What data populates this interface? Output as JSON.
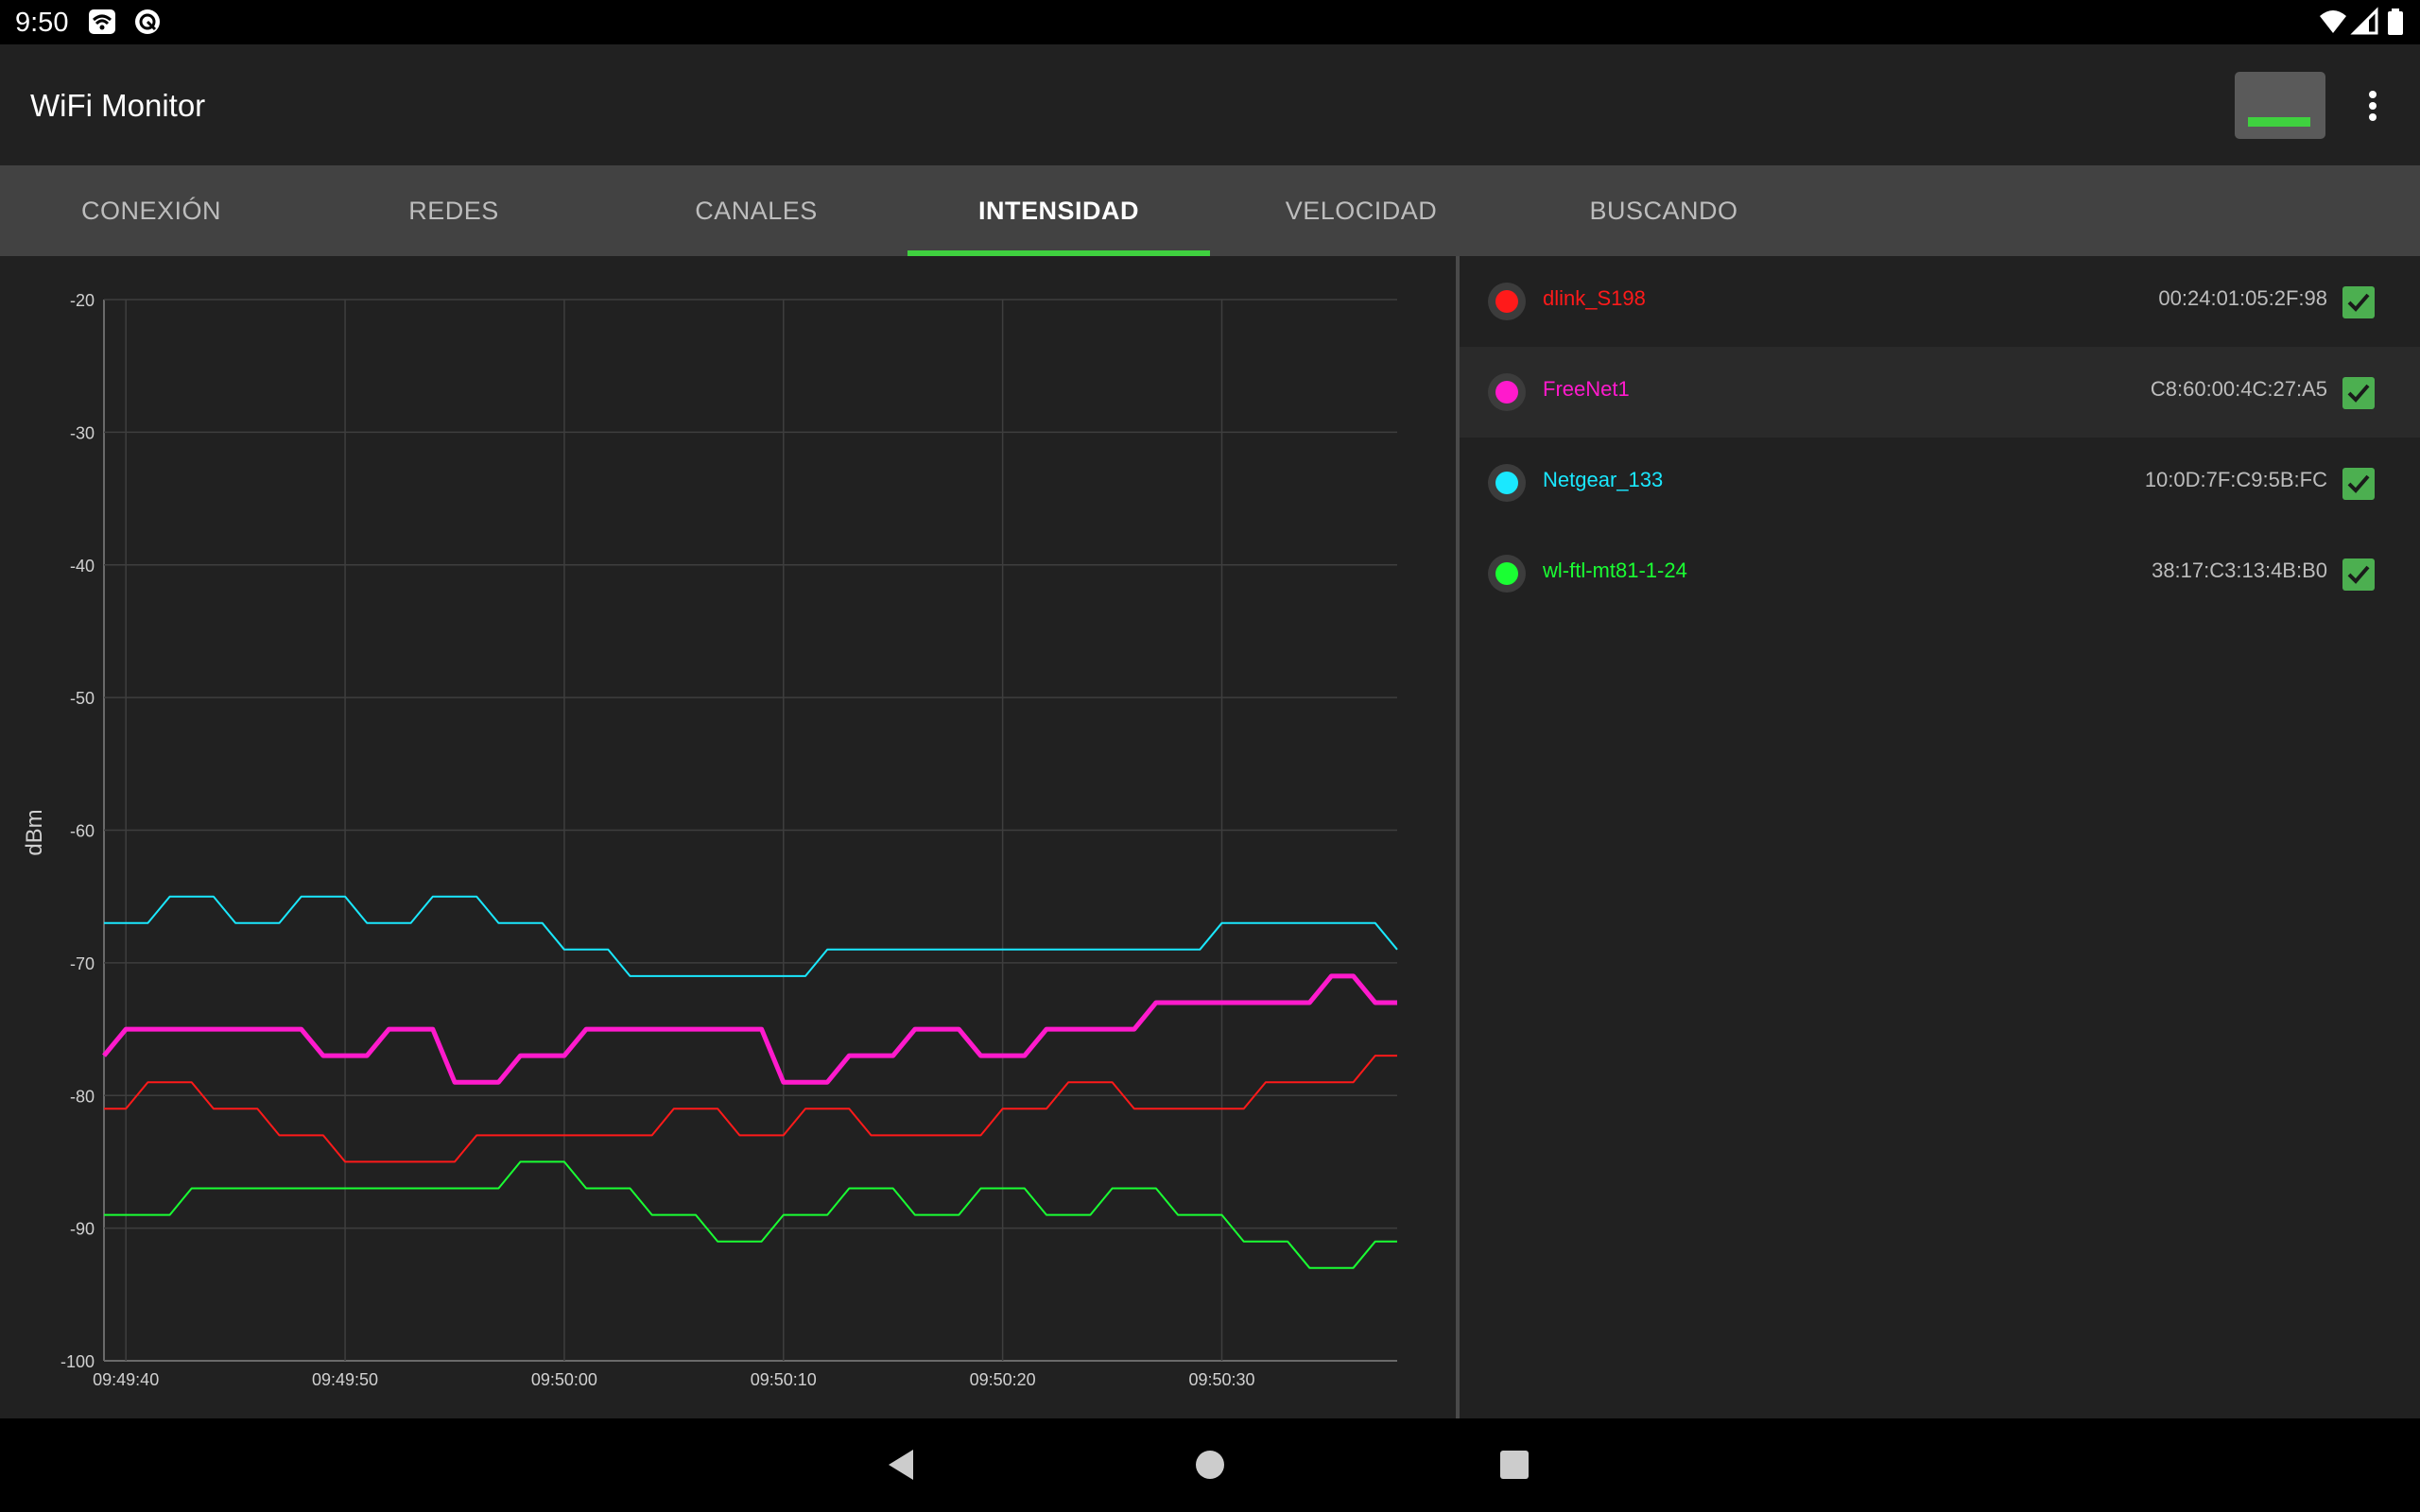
{
  "status_bar": {
    "time": "9:50"
  },
  "app": {
    "title": "WiFi Monitor"
  },
  "tabs": [
    {
      "label": "CONEXIÓN",
      "active": false
    },
    {
      "label": "REDES",
      "active": false
    },
    {
      "label": "CANALES",
      "active": false
    },
    {
      "label": "INTENSIDAD",
      "active": true
    },
    {
      "label": "VELOCIDAD",
      "active": false
    },
    {
      "label": "BUSCANDO",
      "active": false
    }
  ],
  "networks": [
    {
      "ssid": "dlink_S198",
      "bssid": "00:24:01:05:2F:98",
      "color": "#ff1a1a",
      "checked": true
    },
    {
      "ssid": "FreeNet1",
      "bssid": "C8:60:00:4C:27:A5",
      "color": "#ff1acc",
      "checked": true
    },
    {
      "ssid": "Netgear_133",
      "bssid": "10:0D:7F:C9:5B:FC",
      "color": "#1ae8ff",
      "checked": true
    },
    {
      "ssid": "wl-ftl-mt81-1-24",
      "bssid": "38:17:C3:13:4B:B0",
      "color": "#1aff33",
      "checked": true
    }
  ],
  "chart_data": {
    "type": "line",
    "ylabel": "dBm",
    "xlabel": "",
    "ylim": [
      -100,
      -20
    ],
    "yticks": [
      "-20",
      "-30",
      "-40",
      "-50",
      "-60",
      "-70",
      "-80",
      "-90",
      "-100"
    ],
    "xticks": [
      "09:49:40",
      "09:49:50",
      "09:50:00",
      "09:50:10",
      "09:50:20",
      "09:50:30"
    ],
    "xlim": [
      "09:49:39",
      "09:50:38"
    ],
    "grid": true,
    "series": [
      {
        "name": "Netgear_133",
        "color": "#1ae8ff",
        "width": 2,
        "points": [
          [
            "09:49:39",
            -67
          ],
          [
            "09:49:41",
            -67
          ],
          [
            "09:49:42",
            -65
          ],
          [
            "09:49:44",
            -65
          ],
          [
            "09:49:45",
            -67
          ],
          [
            "09:49:47",
            -67
          ],
          [
            "09:49:48",
            -65
          ],
          [
            "09:49:50",
            -65
          ],
          [
            "09:49:51",
            -67
          ],
          [
            "09:49:53",
            -67
          ],
          [
            "09:49:54",
            -65
          ],
          [
            "09:49:56",
            -65
          ],
          [
            "09:49:57",
            -67
          ],
          [
            "09:49:59",
            -67
          ],
          [
            "09:50:00",
            -69
          ],
          [
            "09:50:02",
            -69
          ],
          [
            "09:50:03",
            -71
          ],
          [
            "09:50:11",
            -71
          ],
          [
            "09:50:12",
            -69
          ],
          [
            "09:50:29",
            -69
          ],
          [
            "09:50:30",
            -67
          ],
          [
            "09:50:37",
            -67
          ],
          [
            "09:50:38",
            -69
          ]
        ]
      },
      {
        "name": "FreeNet1",
        "color": "#ff1acc",
        "width": 5,
        "points": [
          [
            "09:49:39",
            -77
          ],
          [
            "09:49:40",
            -75
          ],
          [
            "09:49:48",
            -75
          ],
          [
            "09:49:49",
            -77
          ],
          [
            "09:49:51",
            -77
          ],
          [
            "09:49:52",
            -75
          ],
          [
            "09:49:54",
            -75
          ],
          [
            "09:49:55",
            -79
          ],
          [
            "09:49:57",
            -79
          ],
          [
            "09:49:58",
            -77
          ],
          [
            "09:50:00",
            -77
          ],
          [
            "09:50:01",
            -75
          ],
          [
            "09:50:09",
            -75
          ],
          [
            "09:50:10",
            -79
          ],
          [
            "09:50:12",
            -79
          ],
          [
            "09:50:13",
            -77
          ],
          [
            "09:50:15",
            -77
          ],
          [
            "09:50:16",
            -75
          ],
          [
            "09:50:18",
            -75
          ],
          [
            "09:50:19",
            -77
          ],
          [
            "09:50:21",
            -77
          ],
          [
            "09:50:22",
            -75
          ],
          [
            "09:50:26",
            -75
          ],
          [
            "09:50:27",
            -73
          ],
          [
            "09:50:34",
            -73
          ],
          [
            "09:50:35",
            -71
          ],
          [
            "09:50:36",
            -71
          ],
          [
            "09:50:37",
            -73
          ],
          [
            "09:50:38",
            -73
          ]
        ]
      },
      {
        "name": "dlink_S198",
        "color": "#ff1a1a",
        "width": 2,
        "points": [
          [
            "09:49:39",
            -81
          ],
          [
            "09:49:40",
            -81
          ],
          [
            "09:49:41",
            -79
          ],
          [
            "09:49:43",
            -79
          ],
          [
            "09:49:44",
            -81
          ],
          [
            "09:49:46",
            -81
          ],
          [
            "09:49:47",
            -83
          ],
          [
            "09:49:49",
            -83
          ],
          [
            "09:49:50",
            -85
          ],
          [
            "09:49:55",
            -85
          ],
          [
            "09:49:56",
            -83
          ],
          [
            "09:50:04",
            -83
          ],
          [
            "09:50:05",
            -81
          ],
          [
            "09:50:07",
            -81
          ],
          [
            "09:50:08",
            -83
          ],
          [
            "09:50:10",
            -83
          ],
          [
            "09:50:11",
            -81
          ],
          [
            "09:50:13",
            -81
          ],
          [
            "09:50:14",
            -83
          ],
          [
            "09:50:19",
            -83
          ],
          [
            "09:50:20",
            -81
          ],
          [
            "09:50:22",
            -81
          ],
          [
            "09:50:23",
            -79
          ],
          [
            "09:50:25",
            -79
          ],
          [
            "09:50:26",
            -81
          ],
          [
            "09:50:31",
            -81
          ],
          [
            "09:50:32",
            -79
          ],
          [
            "09:50:36",
            -79
          ],
          [
            "09:50:37",
            -77
          ],
          [
            "09:50:38",
            -77
          ]
        ]
      },
      {
        "name": "wl-ftl-mt81-1-24",
        "color": "#1aff33",
        "width": 2,
        "points": [
          [
            "09:49:39",
            -89
          ],
          [
            "09:49:42",
            -89
          ],
          [
            "09:49:43",
            -87
          ],
          [
            "09:49:57",
            -87
          ],
          [
            "09:49:58",
            -85
          ],
          [
            "09:50:00",
            -85
          ],
          [
            "09:50:01",
            -87
          ],
          [
            "09:50:03",
            -87
          ],
          [
            "09:50:04",
            -89
          ],
          [
            "09:50:06",
            -89
          ],
          [
            "09:50:07",
            -91
          ],
          [
            "09:50:09",
            -91
          ],
          [
            "09:50:10",
            -89
          ],
          [
            "09:50:12",
            -89
          ],
          [
            "09:50:13",
            -87
          ],
          [
            "09:50:15",
            -87
          ],
          [
            "09:50:16",
            -89
          ],
          [
            "09:50:18",
            -89
          ],
          [
            "09:50:19",
            -87
          ],
          [
            "09:50:21",
            -87
          ],
          [
            "09:50:22",
            -89
          ],
          [
            "09:50:24",
            -89
          ],
          [
            "09:50:25",
            -87
          ],
          [
            "09:50:27",
            -87
          ],
          [
            "09:50:28",
            -89
          ],
          [
            "09:50:30",
            -89
          ],
          [
            "09:50:31",
            -91
          ],
          [
            "09:50:33",
            -91
          ],
          [
            "09:50:34",
            -93
          ],
          [
            "09:50:36",
            -93
          ],
          [
            "09:50:37",
            -91
          ],
          [
            "09:50:38",
            -91
          ]
        ]
      }
    ]
  }
}
